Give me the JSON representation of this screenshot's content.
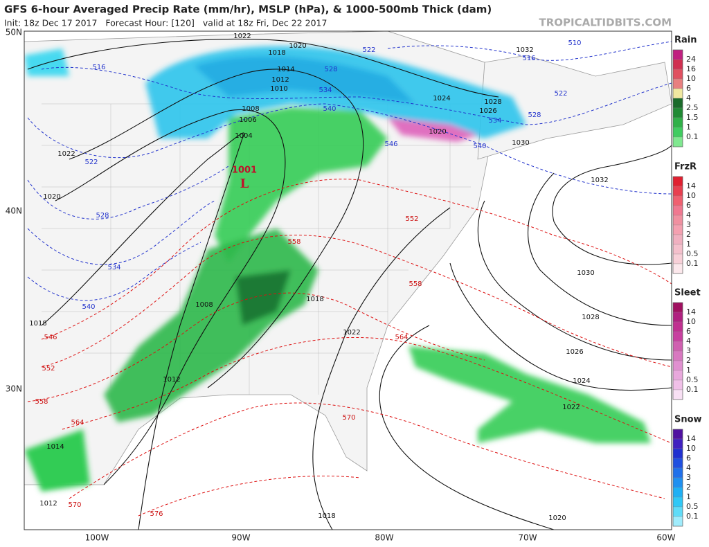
{
  "header": {
    "title": "GFS 6-hour Averaged Precip Rate (mm/hr), MSLP (hPa), & 1000-500mb Thick (dam)",
    "subtitle": "Init: 18z Dec 17 2017   Forecast Hour: [120]   valid at 18z Fri, Dec 22 2017",
    "brand": "TROPICALTIDBITS.COM"
  },
  "axes": {
    "latitudes": [
      "50N",
      "40N",
      "30N"
    ],
    "longitudes": [
      "100W",
      "90W",
      "80W",
      "70W",
      "60W"
    ]
  },
  "low": {
    "pressure": "1001",
    "symbol": "L"
  },
  "isobar_labels": [
    "1022",
    "1018",
    "1020",
    "1014",
    "1012",
    "1010",
    "1008",
    "1006",
    "1004",
    "1022",
    "1020",
    "1008",
    "1012",
    "1018",
    "1014",
    "1012",
    "1018",
    "1020",
    "1022",
    "1024",
    "1026",
    "1028",
    "1030",
    "1032",
    "1030",
    "1028",
    "1026",
    "1024",
    "1020",
    "1032",
    "1018",
    "1022"
  ],
  "thickness_labels_cold": [
    "522",
    "510",
    "516",
    "528",
    "534",
    "540",
    "516",
    "522",
    "528",
    "534",
    "540",
    "522",
    "528",
    "534",
    "540",
    "546"
  ],
  "thickness_labels_warm": [
    "552",
    "558",
    "558",
    "546",
    "552",
    "558",
    "564",
    "564",
    "570",
    "570",
    "576"
  ],
  "legend": {
    "panels": [
      {
        "title": "Rain",
        "labels": [
          24,
          16,
          10,
          6,
          4,
          2.5,
          1.5,
          1,
          0.1
        ]
      },
      {
        "title": "FrzR",
        "labels": [
          14,
          10,
          6,
          4,
          3,
          2,
          1,
          0.5,
          0.1
        ]
      },
      {
        "title": "Sleet",
        "labels": [
          14,
          10,
          6,
          4,
          3,
          2,
          1,
          0.5,
          0.1
        ]
      },
      {
        "title": "Snow",
        "labels": [
          14,
          10,
          6,
          4,
          3,
          2,
          1,
          0.5,
          0.1
        ]
      }
    ]
  }
}
